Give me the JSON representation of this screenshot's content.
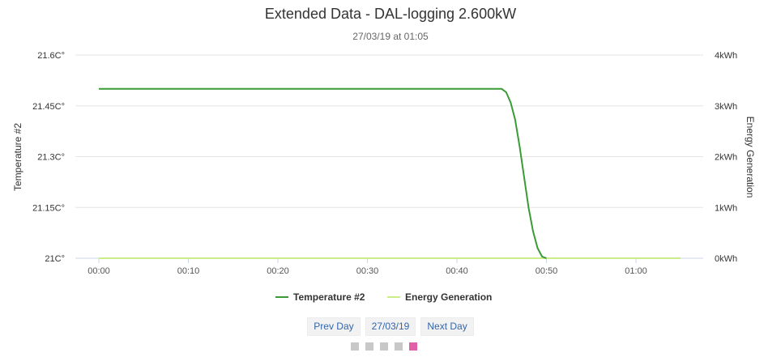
{
  "chart_data": {
    "type": "line",
    "title": "Extended Data - DAL-logging 2.600kW",
    "subtitle": "27/03/19 at 01:05",
    "x_ticks": [
      "00:00",
      "00:10",
      "00:20",
      "00:30",
      "00:40",
      "00:50",
      "01:00"
    ],
    "xlim_minutes": [
      0,
      65
    ],
    "y_left": {
      "title": "Temperature #2",
      "ticks": [
        "21.6C°",
        "21.45C°",
        "21.3C°",
        "21.15C°",
        "21C°"
      ],
      "ylim": [
        21.0,
        21.6
      ]
    },
    "y_right": {
      "title": "Energy Generation",
      "ticks": [
        "4kWh",
        "3kWh",
        "2kWh",
        "1kWh",
        "0kWh"
      ],
      "ylim": [
        0,
        4
      ]
    },
    "grid": true,
    "legend_position": "bottom-center",
    "series": [
      {
        "name": "Temperature #2",
        "axis": "left",
        "color": "#3a9a35",
        "x": [
          0,
          45,
          45.5,
          46,
          46.5,
          47,
          47.5,
          48,
          48.5,
          49,
          49.5,
          50
        ],
        "y": [
          21.5,
          21.5,
          21.49,
          21.46,
          21.41,
          21.33,
          21.24,
          21.15,
          21.08,
          21.03,
          21.005,
          21.0
        ]
      },
      {
        "name": "Energy Generation",
        "axis": "right",
        "color": "#ccee88",
        "x": [
          0,
          65
        ],
        "y": [
          0,
          0
        ]
      }
    ]
  },
  "navigation": {
    "prev_label": "Prev Day",
    "date_label": "27/03/19",
    "next_label": "Next Day"
  },
  "pager": {
    "pages": 5,
    "active": 5,
    "active_color": "#e05fa6"
  }
}
